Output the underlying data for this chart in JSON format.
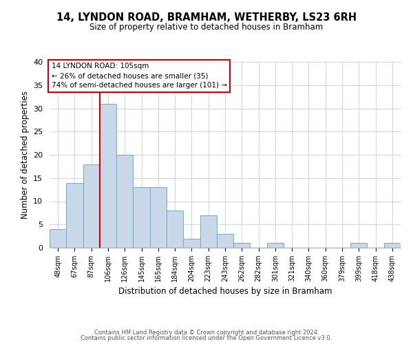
{
  "title": "14, LYNDON ROAD, BRAMHAM, WETHERBY, LS23 6RH",
  "subtitle": "Size of property relative to detached houses in Bramham",
  "xlabel": "Distribution of detached houses by size in Bramham",
  "ylabel": "Number of detached properties",
  "bar_labels": [
    "48sqm",
    "67sqm",
    "87sqm",
    "106sqm",
    "126sqm",
    "145sqm",
    "165sqm",
    "184sqm",
    "204sqm",
    "223sqm",
    "243sqm",
    "262sqm",
    "282sqm",
    "301sqm",
    "321sqm",
    "340sqm",
    "360sqm",
    "379sqm",
    "399sqm",
    "418sqm",
    "438sqm"
  ],
  "bar_values": [
    4,
    14,
    18,
    31,
    20,
    13,
    13,
    8,
    2,
    7,
    3,
    1,
    0,
    1,
    0,
    0,
    0,
    0,
    1,
    0,
    1
  ],
  "bar_color": "#c8d8e8",
  "bar_edge_color": "#7aaecf",
  "vline_color": "#cc0000",
  "vline_index": 2.5,
  "ylim": [
    0,
    40
  ],
  "yticks": [
    0,
    5,
    10,
    15,
    20,
    25,
    30,
    35,
    40
  ],
  "annotation_title": "14 LYNDON ROAD: 105sqm",
  "annotation_line1": "← 26% of detached houses are smaller (35)",
  "annotation_line2": "74% of semi-detached houses are larger (101) →",
  "annotation_box_color": "#ffffff",
  "annotation_box_edge": "#cc0000",
  "footer1": "Contains HM Land Registry data © Crown copyright and database right 2024.",
  "footer2": "Contains public sector information licensed under the Open Government Licence v3.0.",
  "background_color": "#ffffff",
  "grid_color": "#d0d8e8"
}
